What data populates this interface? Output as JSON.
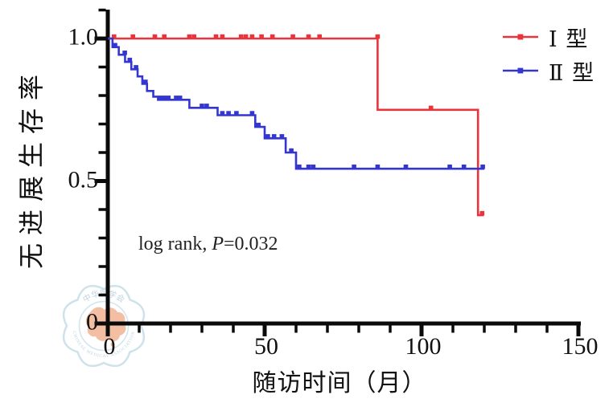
{
  "figure": {
    "ylabel": "无进展生存率",
    "xlabel": "随访时间（月）",
    "annotation": {
      "prefix": "log rank, ",
      "stat": "P",
      "suffix": "=0.032"
    }
  },
  "watermark": {
    "top_text": "中华医学会",
    "bottom_text": "CHINESE MEDICAL ASSOCIATION",
    "ring_color": "#c9dfe9",
    "map_color": "#f2b394"
  },
  "chart_data": {
    "type": "line",
    "subtype": "kaplan-meier-step-survival",
    "title": "",
    "xlabel": "随访时间（月）",
    "ylabel": "无进展生存率",
    "annotation": "log rank, P=0.032",
    "xlim": [
      0,
      150
    ],
    "ylim": [
      0,
      1.1
    ],
    "x_major_ticks": [
      0,
      50,
      100,
      150
    ],
    "x_ticklabels": [
      "0",
      "50",
      "100",
      "150"
    ],
    "x_minor_step": 10,
    "y_major_ticks": [
      0,
      0.5,
      1.0
    ],
    "y_ticklabels": [
      "0",
      "0.5",
      "1.0"
    ],
    "y_minor_step": 0.1,
    "grid": false,
    "legend_position": "top-right",
    "axis_color": "#0a0a0a",
    "series": [
      {
        "name": "Ⅰ 型",
        "color": "#e8343a",
        "steps": [
          [
            0,
            1.0
          ],
          [
            86,
            1.0
          ],
          [
            86,
            0.75
          ],
          [
            118,
            0.75
          ],
          [
            118,
            0.38
          ],
          [
            119.8,
            0.38
          ]
        ],
        "censor_marks": [
          [
            2,
            1.0
          ],
          [
            8,
            1.0
          ],
          [
            15,
            1.0
          ],
          [
            18,
            1.0
          ],
          [
            26,
            1.0
          ],
          [
            27.5,
            1.0
          ],
          [
            34.5,
            1.0
          ],
          [
            36.5,
            1.0
          ],
          [
            42.5,
            1.0
          ],
          [
            44,
            1.0
          ],
          [
            46,
            1.0
          ],
          [
            49,
            1.0
          ],
          [
            52.5,
            1.0
          ],
          [
            59,
            1.0
          ],
          [
            64,
            1.0
          ],
          [
            67.5,
            1.0
          ],
          [
            86,
            1.0
          ],
          [
            103,
            0.75
          ],
          [
            119.3,
            0.38
          ]
        ]
      },
      {
        "name": "Ⅱ 型",
        "color": "#3336d0",
        "steps": [
          [
            0,
            1.0
          ],
          [
            1.5,
            1.0
          ],
          [
            1.5,
            0.97
          ],
          [
            3.5,
            0.97
          ],
          [
            3.5,
            0.943
          ],
          [
            5.5,
            0.943
          ],
          [
            5.5,
            0.918
          ],
          [
            7.5,
            0.918
          ],
          [
            7.5,
            0.892
          ],
          [
            9.5,
            0.892
          ],
          [
            9.5,
            0.867
          ],
          [
            11,
            0.867
          ],
          [
            11,
            0.841
          ],
          [
            12.5,
            0.841
          ],
          [
            12.5,
            0.816
          ],
          [
            14.5,
            0.816
          ],
          [
            14.5,
            0.796
          ],
          [
            16,
            0.796
          ],
          [
            16,
            0.785
          ],
          [
            26,
            0.785
          ],
          [
            26,
            0.757
          ],
          [
            35,
            0.757
          ],
          [
            35,
            0.731
          ],
          [
            47,
            0.731
          ],
          [
            47,
            0.69
          ],
          [
            50,
            0.69
          ],
          [
            50,
            0.65
          ],
          [
            56.7,
            0.65
          ],
          [
            56.7,
            0.6
          ],
          [
            60,
            0.6
          ],
          [
            60,
            0.543
          ],
          [
            120,
            0.543
          ]
        ],
        "censor_marks": [
          [
            2.3,
            0.97
          ],
          [
            5.4,
            0.943
          ],
          [
            7,
            0.918
          ],
          [
            9,
            0.892
          ],
          [
            12,
            0.841
          ],
          [
            16.8,
            0.785
          ],
          [
            18,
            0.785
          ],
          [
            19.3,
            0.785
          ],
          [
            21.8,
            0.785
          ],
          [
            23,
            0.785
          ],
          [
            30,
            0.757
          ],
          [
            31.5,
            0.757
          ],
          [
            36.5,
            0.731
          ],
          [
            38.5,
            0.731
          ],
          [
            41,
            0.731
          ],
          [
            46,
            0.731
          ],
          [
            48,
            0.69
          ],
          [
            51,
            0.65
          ],
          [
            53,
            0.65
          ],
          [
            55.5,
            0.65
          ],
          [
            58.5,
            0.6
          ],
          [
            61,
            0.543
          ],
          [
            64,
            0.543
          ],
          [
            65.5,
            0.543
          ],
          [
            78.5,
            0.543
          ],
          [
            86,
            0.543
          ],
          [
            95,
            0.543
          ],
          [
            109,
            0.543
          ],
          [
            113.5,
            0.543
          ],
          [
            119.5,
            0.543
          ]
        ]
      }
    ]
  }
}
